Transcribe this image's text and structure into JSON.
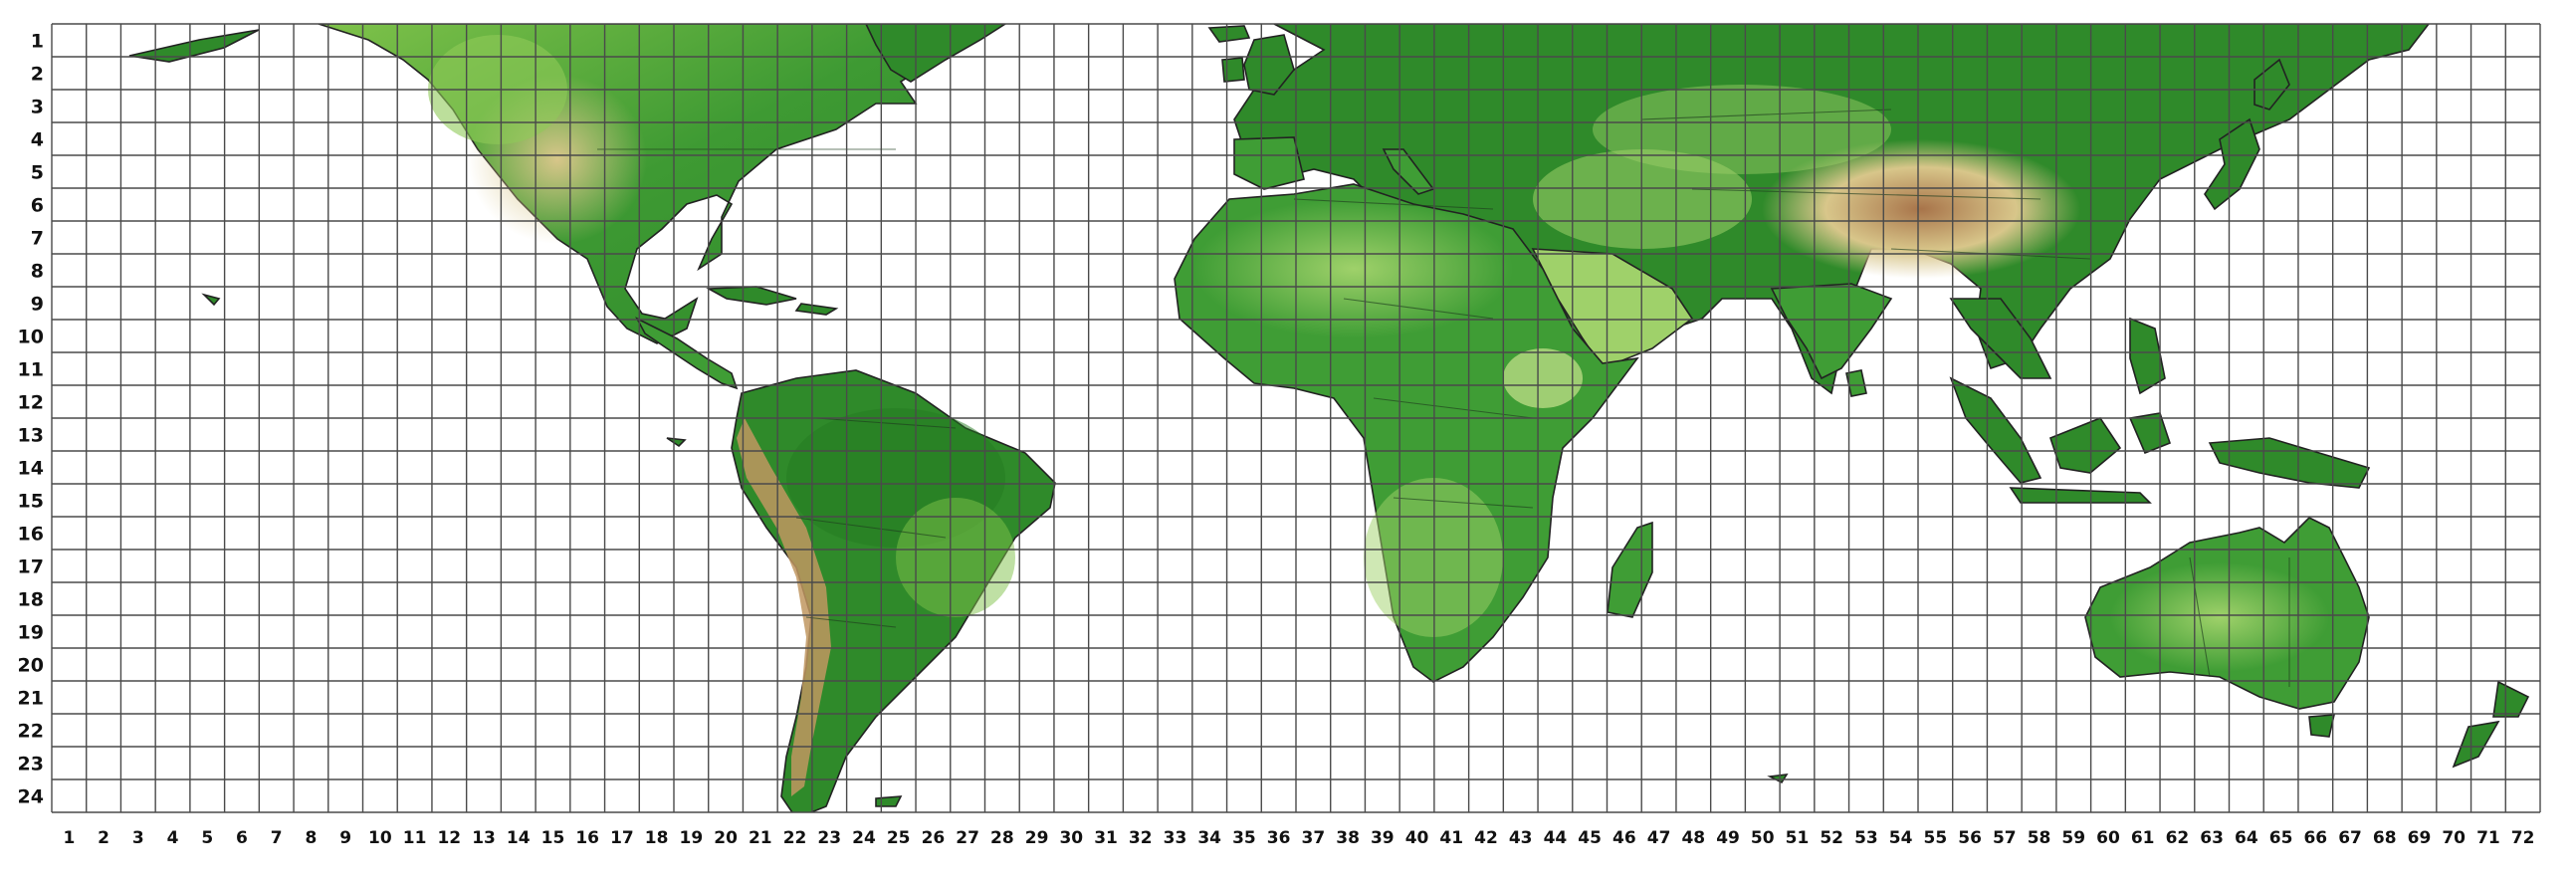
{
  "map": {
    "columns": 72,
    "rows": 24,
    "row_labels": [
      "1",
      "2",
      "3",
      "4",
      "5",
      "6",
      "7",
      "8",
      "9",
      "10",
      "11",
      "12",
      "13",
      "14",
      "15",
      "16",
      "17",
      "18",
      "19",
      "20",
      "21",
      "22",
      "23",
      "24"
    ],
    "column_labels": [
      "1",
      "2",
      "3",
      "4",
      "5",
      "6",
      "7",
      "8",
      "9",
      "10",
      "11",
      "12",
      "13",
      "14",
      "15",
      "16",
      "17",
      "18",
      "19",
      "20",
      "21",
      "22",
      "23",
      "24",
      "25",
      "26",
      "27",
      "28",
      "29",
      "30",
      "31",
      "32",
      "33",
      "34",
      "35",
      "36",
      "37",
      "38",
      "39",
      "40",
      "41",
      "42",
      "43",
      "44",
      "45",
      "46",
      "47",
      "48",
      "49",
      "50",
      "51",
      "52",
      "53",
      "54",
      "55",
      "56",
      "57",
      "58",
      "59",
      "60",
      "61",
      "62",
      "63",
      "64",
      "65",
      "66",
      "67",
      "68",
      "69",
      "70",
      "71",
      "72"
    ],
    "colors": {
      "lowland": "#2f8a2a",
      "lowland_dark": "#237a20",
      "midland": "#7fc24a",
      "upland": "#c9e38f",
      "highland": "#d8c68a",
      "mountain": "#b98a5a",
      "water": "#ffffff",
      "grid": "#4a4a4a"
    },
    "landmasses": [
      "north-america",
      "south-america",
      "europe-asia",
      "africa",
      "australia",
      "greenland",
      "madagascar",
      "new-zealand",
      "japan",
      "british-isles",
      "indonesia",
      "new-guinea",
      "iceland",
      "sri-lanka",
      "tasmania"
    ]
  }
}
